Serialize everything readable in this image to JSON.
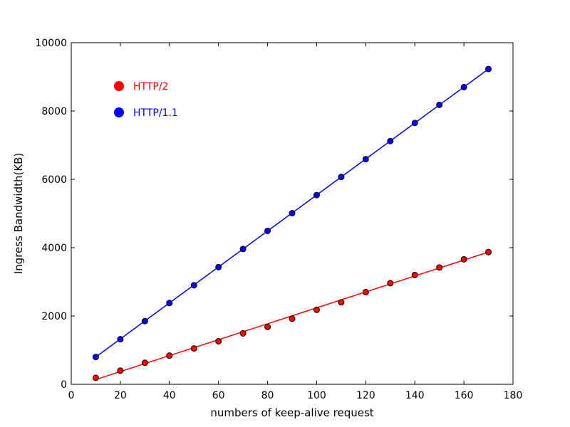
{
  "chart_data": {
    "type": "scatter",
    "xlabel": "numbers of keep-alive request",
    "ylabel": "Ingress Bandwidth(KB)",
    "xlim": [
      0,
      180
    ],
    "ylim": [
      0,
      10000
    ],
    "x_ticks": [
      0,
      20,
      40,
      60,
      80,
      100,
      120,
      140,
      160,
      180
    ],
    "y_ticks": [
      0,
      2000,
      4000,
      6000,
      8000,
      10000
    ],
    "grid": false,
    "legend_position": "top-left",
    "series": [
      {
        "name": "HTTP/2",
        "color": "#ff0000",
        "x": [
          10,
          20,
          30,
          40,
          50,
          60,
          70,
          80,
          90,
          100,
          110,
          120,
          130,
          140,
          150,
          160,
          170
        ],
        "y": [
          190,
          400,
          630,
          840,
          1050,
          1260,
          1490,
          1680,
          1920,
          2180,
          2400,
          2700,
          2960,
          3200,
          3420,
          3660,
          3870
        ],
        "fit": [
          140,
          3870
        ]
      },
      {
        "name": "HTTP/1.1",
        "color": "#0000ff",
        "x": [
          10,
          20,
          30,
          40,
          50,
          60,
          70,
          80,
          90,
          100,
          110,
          120,
          130,
          140,
          150,
          160,
          170
        ],
        "y": [
          800,
          1320,
          1850,
          2380,
          2900,
          3430,
          3960,
          4490,
          5010,
          5540,
          6070,
          6590,
          7120,
          7650,
          8180,
          8700,
          9230
        ],
        "fit": [
          800,
          9230
        ]
      }
    ]
  }
}
